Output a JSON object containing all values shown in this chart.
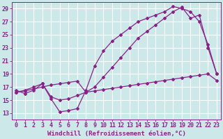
{
  "background_color": "#cce8e8",
  "grid_color": "#ffffff",
  "line_color": "#882288",
  "marker": "D",
  "markersize": 2.0,
  "linewidth": 0.9,
  "xlabel": "Windchill (Refroidissement éolien,°C)",
  "xlabel_fontsize": 6.5,
  "tick_fontsize": 6,
  "xlim": [
    -0.5,
    23.5
  ],
  "ylim": [
    12.0,
    30.0
  ],
  "yticks": [
    13,
    15,
    17,
    19,
    21,
    23,
    25,
    27,
    29
  ],
  "xticks": [
    0,
    1,
    2,
    3,
    4,
    5,
    6,
    7,
    8,
    9,
    10,
    11,
    12,
    13,
    14,
    15,
    16,
    17,
    18,
    19,
    20,
    21,
    22,
    23
  ],
  "curve1_x": [
    0,
    1,
    2,
    3,
    4,
    5,
    6,
    7,
    8,
    9,
    10,
    11,
    12,
    13,
    14,
    15,
    16,
    17,
    18,
    19,
    20,
    21,
    22,
    23
  ],
  "curve1_y": [
    16.2,
    16.4,
    16.7,
    17.0,
    17.3,
    17.5,
    17.7,
    17.9,
    16.2,
    16.4,
    16.6,
    16.8,
    17.0,
    17.2,
    17.4,
    17.6,
    17.8,
    18.0,
    18.2,
    18.4,
    18.6,
    18.8,
    19.0,
    18.0
  ],
  "curve2_x": [
    0,
    1,
    2,
    3,
    4,
    5,
    6,
    7,
    8,
    9,
    10,
    11,
    12,
    13,
    14,
    15,
    16,
    17,
    18,
    19,
    20,
    21,
    22,
    23
  ],
  "curve2_y": [
    16.2,
    16.5,
    17.0,
    17.5,
    15.5,
    15.0,
    15.2,
    15.7,
    16.2,
    17.0,
    18.5,
    20.0,
    21.5,
    23.0,
    24.5,
    25.5,
    26.5,
    27.5,
    28.5,
    29.2,
    27.5,
    28.0,
    23.0,
    19.0
  ],
  "curve3_x": [
    0,
    1,
    2,
    3,
    4,
    5,
    6,
    7,
    8,
    9,
    10,
    11,
    12,
    13,
    14,
    15,
    16,
    17,
    18,
    19,
    20,
    21,
    22,
    23
  ],
  "curve3_y": [
    16.5,
    16.0,
    16.5,
    17.5,
    15.2,
    13.2,
    13.4,
    13.7,
    16.5,
    20.2,
    22.5,
    24.0,
    25.0,
    26.0,
    27.0,
    27.5,
    28.0,
    28.5,
    29.3,
    29.0,
    28.5,
    27.0,
    23.5,
    19.0
  ]
}
